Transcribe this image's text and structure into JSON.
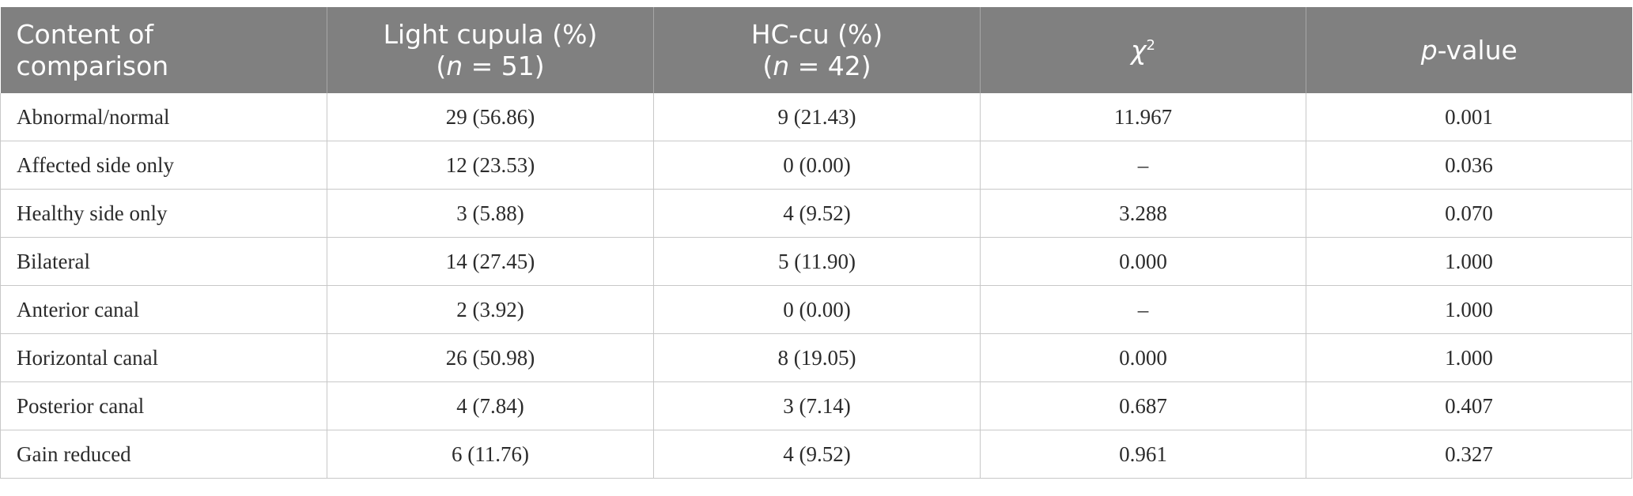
{
  "header": {
    "col0": {
      "line1": "Content of",
      "line2": "comparison"
    },
    "col1": {
      "line1": "Light cupula (%)",
      "open": "(",
      "var": "n",
      "rest": " = 51)"
    },
    "col2": {
      "line1": "HC-cu (%)",
      "open": "(",
      "var": "n",
      "rest": " = 42)"
    },
    "col3": {
      "symbol": "χ",
      "sup": "2"
    },
    "col4": {
      "var": "p",
      "rest": "-value"
    }
  },
  "rows": [
    {
      "label": "Abnormal/normal",
      "light": "29 (56.86)",
      "hccu": "9 (21.43)",
      "chi": "11.967",
      "p": "0.001"
    },
    {
      "label": "Affected side only",
      "light": "12 (23.53)",
      "hccu": "0 (0.00)",
      "chi": "–",
      "p": "0.036"
    },
    {
      "label": "Healthy side only",
      "light": "3 (5.88)",
      "hccu": "4 (9.52)",
      "chi": "3.288",
      "p": "0.070"
    },
    {
      "label": "Bilateral",
      "light": "14 (27.45)",
      "hccu": "5 (11.90)",
      "chi": "0.000",
      "p": "1.000"
    },
    {
      "label": "Anterior canal",
      "light": "2 (3.92)",
      "hccu": "0 (0.00)",
      "chi": "–",
      "p": "1.000"
    },
    {
      "label": "Horizontal canal",
      "light": "26 (50.98)",
      "hccu": "8 (19.05)",
      "chi": "0.000",
      "p": "1.000"
    },
    {
      "label": "Posterior canal",
      "light": "4 (7.84)",
      "hccu": "3 (7.14)",
      "chi": "0.687",
      "p": "0.407"
    },
    {
      "label": "Gain reduced",
      "light": "6 (11.76)",
      "hccu": "4 (9.52)",
      "chi": "0.961",
      "p": "0.327"
    }
  ]
}
